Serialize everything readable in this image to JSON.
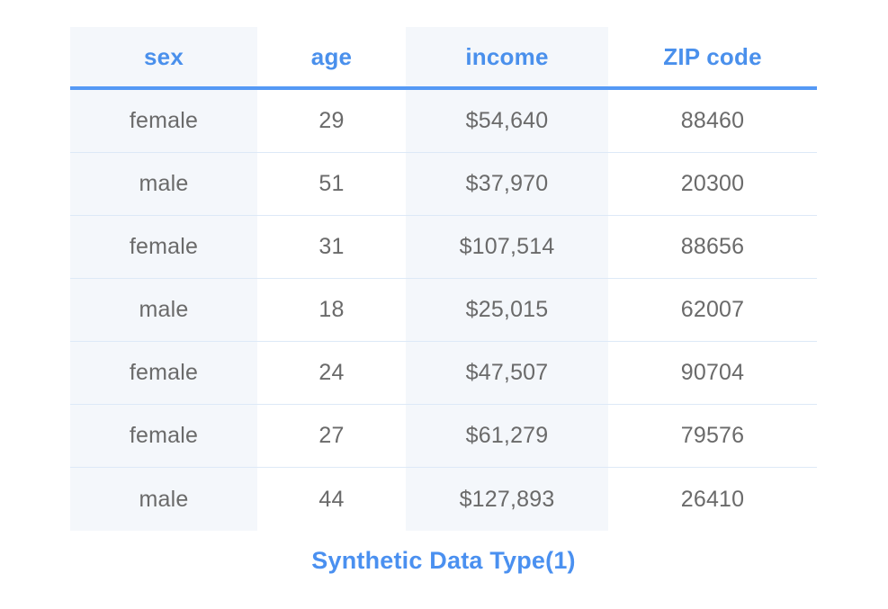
{
  "colors": {
    "header_text": "#4a90ec",
    "header_divider": "#5599f5",
    "row_separator": "#dde9f7",
    "cell_text": "#6a6a6a",
    "shaded_column_bg": "#f4f7fb",
    "caption_text": "#4a90f0",
    "page_bg": "#ffffff"
  },
  "caption": "Synthetic Data Type(1)",
  "chart_data": {
    "type": "table",
    "title": "Synthetic Data Type(1)",
    "columns": [
      "sex",
      "age",
      "income",
      "ZIP code"
    ],
    "rows": [
      {
        "sex": "female",
        "age": "29",
        "income": "$54,640",
        "zip": "88460"
      },
      {
        "sex": "male",
        "age": "51",
        "income": "$37,970",
        "zip": "20300"
      },
      {
        "sex": "female",
        "age": "31",
        "income": "$107,514",
        "zip": "88656"
      },
      {
        "sex": "male",
        "age": "18",
        "income": "$25,015",
        "zip": "62007"
      },
      {
        "sex": "female",
        "age": "24",
        "income": "$47,507",
        "zip": "90704"
      },
      {
        "sex": "female",
        "age": "27",
        "income": "$61,279",
        "zip": "79576"
      },
      {
        "sex": "male",
        "age": "44",
        "income": "$127,893",
        "zip": "26410"
      }
    ],
    "layout_hints": {
      "shaded_columns": [
        "sex",
        "income"
      ],
      "header_rule": "thick blue line under header",
      "row_rule": "thin light-blue line between data rows",
      "caption_position": "centered below table"
    }
  }
}
